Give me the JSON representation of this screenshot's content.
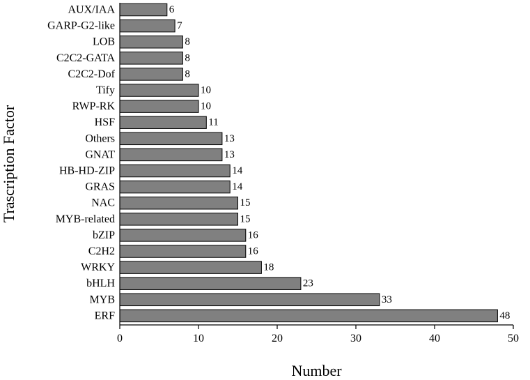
{
  "chart_data": {
    "type": "bar",
    "orientation": "horizontal",
    "title": "",
    "xlabel": "Number",
    "ylabel": "Trascription Factor",
    "xlim": [
      0,
      50
    ],
    "xticks": [
      0,
      10,
      20,
      30,
      40,
      50
    ],
    "grid": false,
    "legend": "none",
    "bar_color": "#808080",
    "bar_edge_color": "#000000",
    "categories": [
      "AUX/IAA",
      "GARP-G2-like",
      "LOB",
      "C2C2-GATA",
      "C2C2-Dof",
      "Tify",
      "RWP-RK",
      "HSF",
      "Others",
      "GNAT",
      "HB-HD-ZIP",
      "GRAS",
      "NAC",
      "MYB-related",
      "bZIP",
      "C2H2",
      "WRKY",
      "bHLH",
      "MYB",
      "ERF"
    ],
    "values": [
      6,
      7,
      8,
      8,
      8,
      10,
      10,
      11,
      13,
      13,
      14,
      14,
      15,
      15,
      16,
      16,
      18,
      23,
      33,
      48
    ]
  }
}
